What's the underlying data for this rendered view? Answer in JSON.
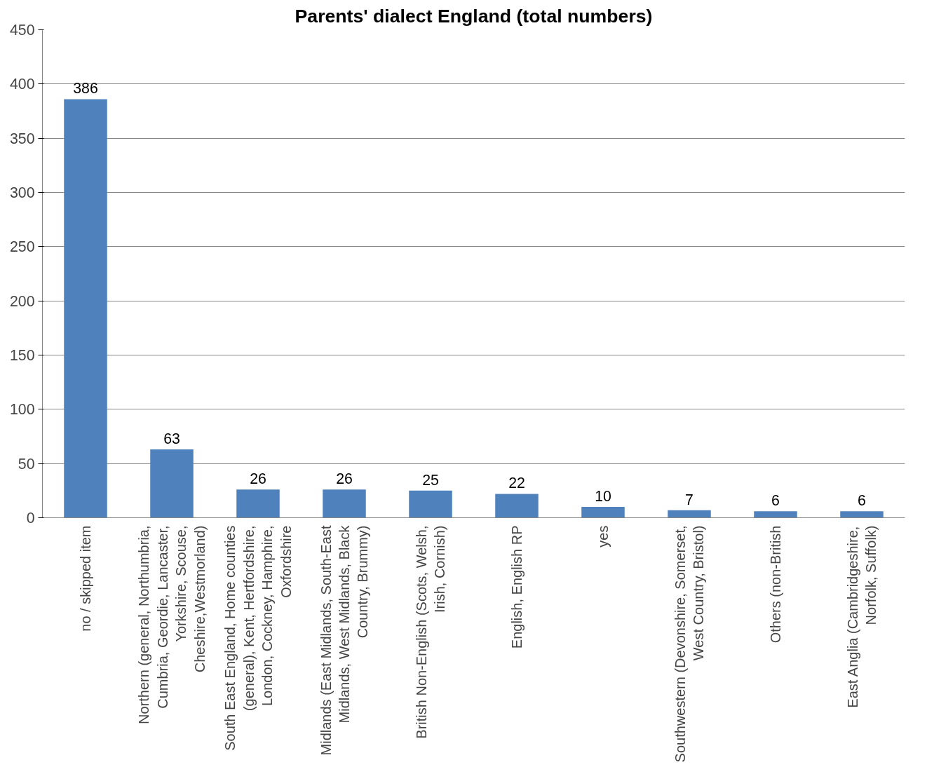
{
  "chart_data": {
    "type": "bar",
    "title": "Parents' dialect England (total numbers)",
    "categories": [
      "no / skipped item",
      "Northern (general, Northumbria, Cumbria, Geordie, Lancaster, Yorkshire, Scouse, Cheshire,Westmorland)",
      "South East England, Home counties (general), Kent, Hertfordshire, London, Cockney, Hamphire, Oxfordshire",
      "Midlands (East Midlands, South-East Midlands, West Midlands, Black Country, Brummy)",
      "British Non-English (Scots, Welsh, Irish, Cornish)",
      "English, English RP",
      "yes",
      "Southwestern (Devonshire, Somerset, West Country, Bristol)",
      "Others (non-British",
      "East Anglia (Cambridgeshire, Norfolk, Suffolk)"
    ],
    "values": [
      386,
      63,
      26,
      26,
      25,
      22,
      10,
      7,
      6,
      6
    ],
    "color": "#4f81bd",
    "ylim": [
      0,
      450
    ],
    "yticks": [
      0,
      50,
      100,
      150,
      200,
      250,
      300,
      350,
      400,
      450
    ],
    "grid": "y",
    "data_labels": true
  }
}
